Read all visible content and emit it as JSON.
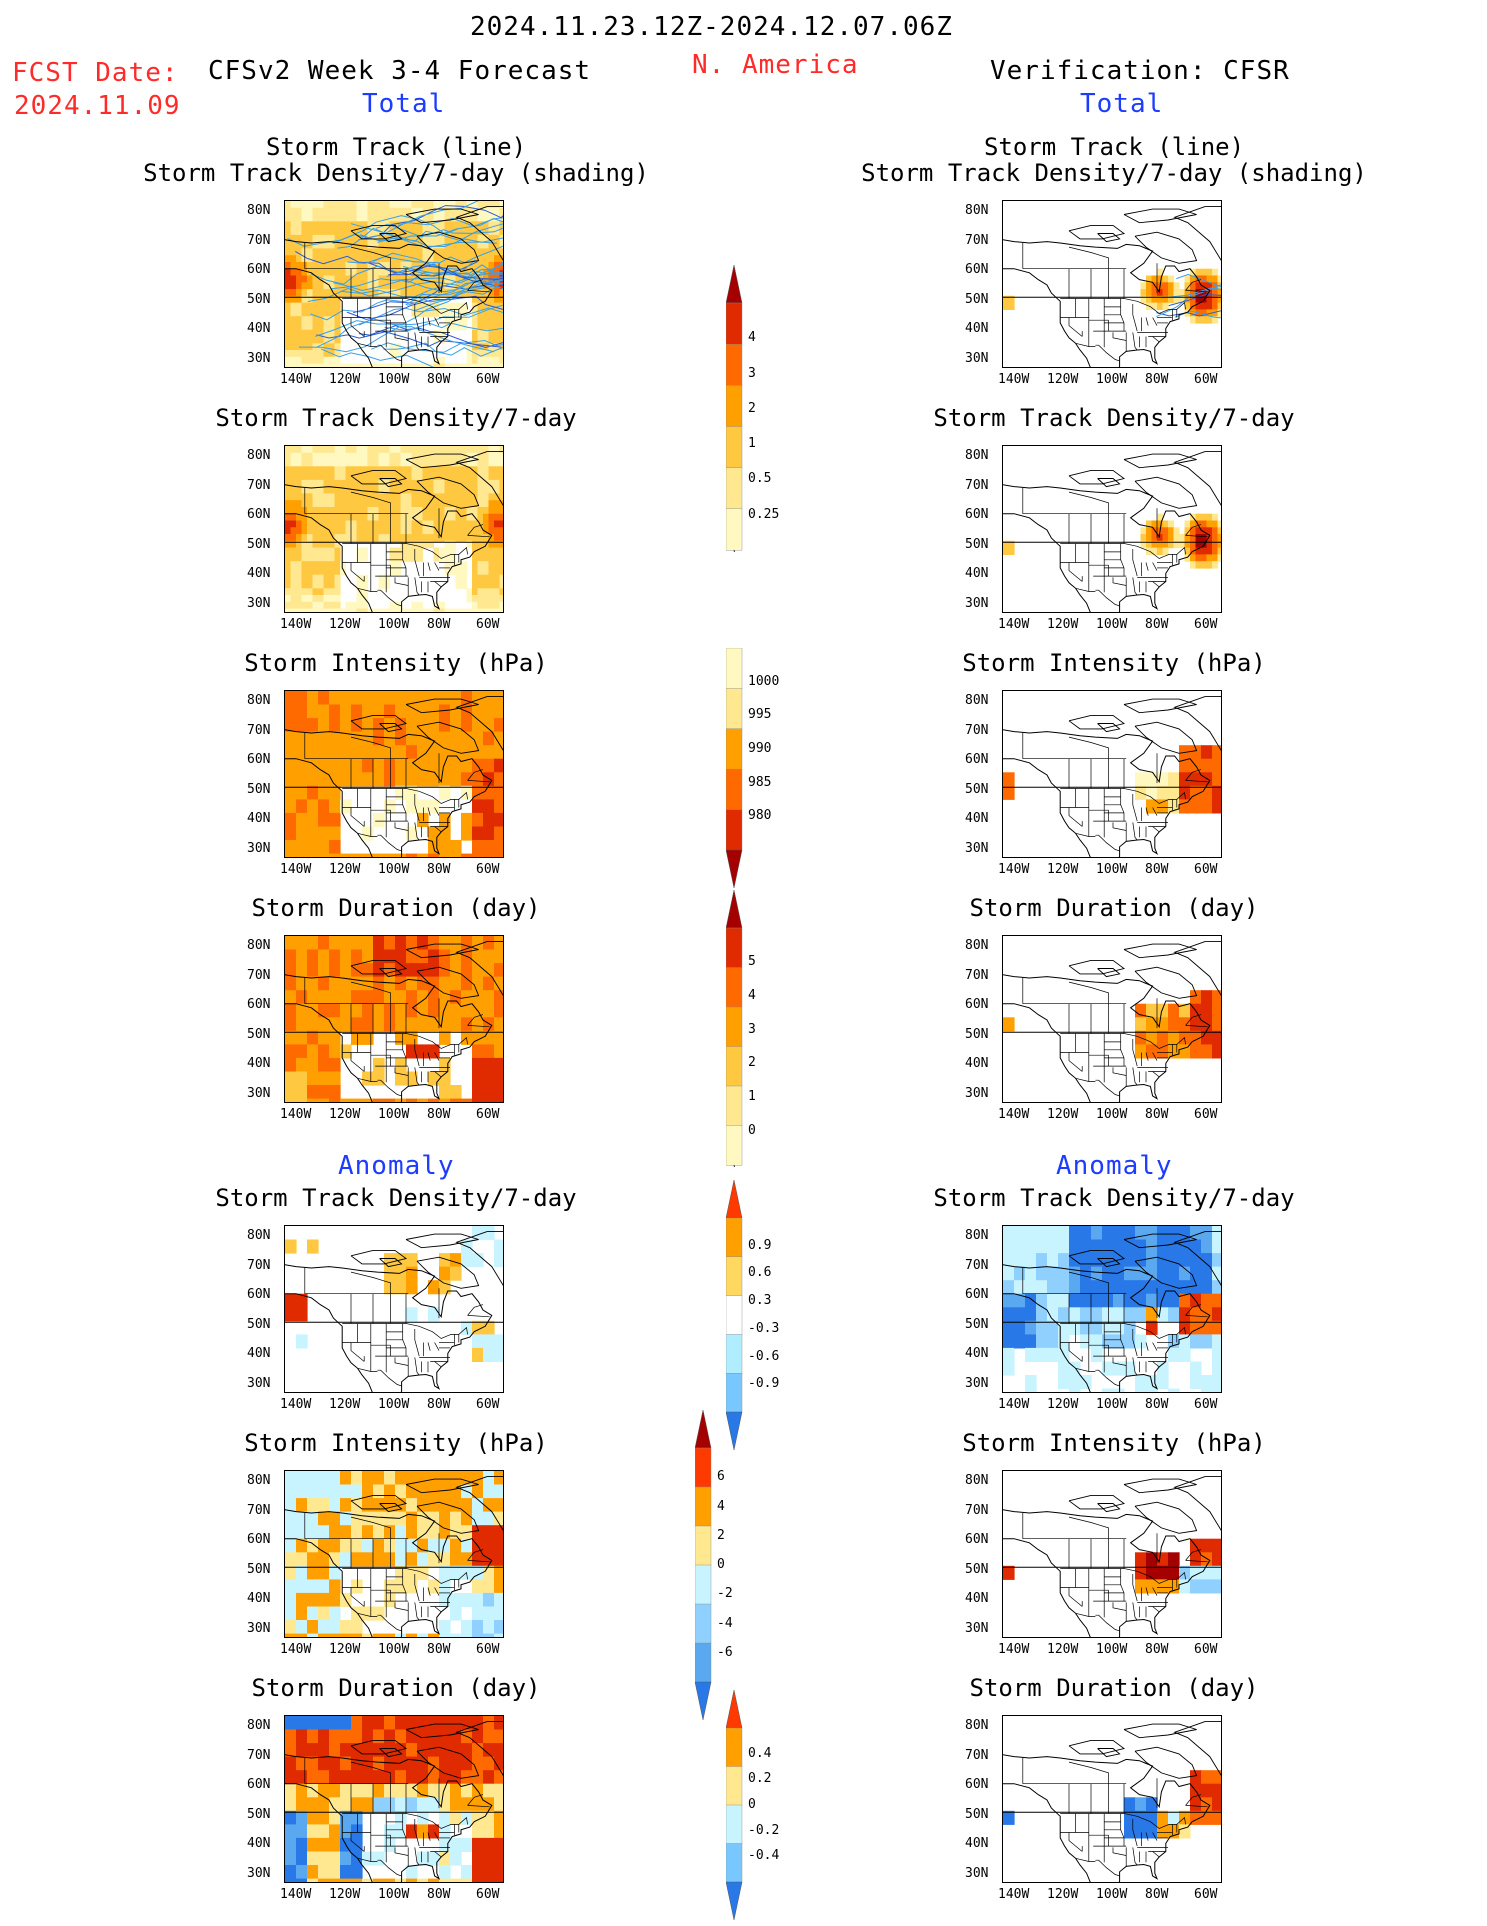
{
  "header": {
    "date_range": "2024.11.23.12Z-2024.12.07.06Z",
    "fcst_label": "FCST Date:",
    "fcst_date": "2024.11.09",
    "left_title": "CFSv2 Week 3-4 Forecast",
    "region": "N. America",
    "right_title": "Verification: CFSR",
    "total_left": "Total",
    "total_right": "Total",
    "anomaly_left": "Anomaly",
    "anomaly_right": "Anomaly"
  },
  "axes": {
    "lat_ticks": [
      "80N",
      "70N",
      "60N",
      "50N",
      "40N",
      "30N"
    ],
    "lon_ticks": [
      "140W",
      "120W",
      "100W",
      "80W",
      "60W"
    ]
  },
  "panels": [
    {
      "id": "f-track",
      "title1": "Storm Track (line)",
      "title2": "Storm Track Density/7-day (shading)",
      "style": "track"
    },
    {
      "id": "v-track",
      "title1": "Storm Track (line)",
      "title2": "Storm Track Density/7-day (shading)",
      "style": "vtrack"
    },
    {
      "id": "f-dens",
      "title1": "Storm Track Density/7-day",
      "style": "dens"
    },
    {
      "id": "v-dens",
      "title1": "Storm Track Density/7-day",
      "style": "vdens"
    },
    {
      "id": "f-int",
      "title1": "Storm Intensity (hPa)",
      "style": "int"
    },
    {
      "id": "v-int",
      "title1": "Storm Intensity (hPa)",
      "style": "vint"
    },
    {
      "id": "f-dur",
      "title1": "Storm Duration (day)",
      "style": "dur"
    },
    {
      "id": "v-dur",
      "title1": "Storm Duration (day)",
      "style": "vdur"
    },
    {
      "id": "f-adens",
      "title1": "Storm Track Density/7-day",
      "style": "adens"
    },
    {
      "id": "v-adens",
      "title1": "Storm Track Density/7-day",
      "style": "vadens"
    },
    {
      "id": "f-aint",
      "title1": "Storm Intensity (hPa)",
      "style": "aint"
    },
    {
      "id": "v-aint",
      "title1": "Storm Intensity (hPa)",
      "style": "vaint"
    },
    {
      "id": "f-adur",
      "title1": "Storm Duration (day)",
      "style": "adur"
    },
    {
      "id": "v-adur",
      "title1": "Storm Duration (day)",
      "style": "vadur"
    }
  ],
  "colorbars": [
    {
      "id": "cb-density",
      "labels": [
        "4",
        "3",
        "2",
        "1",
        "0.5",
        "0.25"
      ],
      "colors": [
        "#a50000",
        "#e02a00",
        "#ff6a00",
        "#ffa000",
        "#ffc840",
        "#ffe890",
        "#fff8c0"
      ],
      "arrow_top": "#a50000"
    },
    {
      "id": "cb-intensity",
      "labels": [
        "1000",
        "995",
        "990",
        "985",
        "980"
      ],
      "colors": [
        "#fff8c0",
        "#ffe890",
        "#ffa000",
        "#ff6a00",
        "#e02a00",
        "#a50000"
      ],
      "arrow_bottom": "#a50000"
    },
    {
      "id": "cb-duration",
      "labels": [
        "5",
        "4",
        "3",
        "2",
        "1",
        "0"
      ],
      "colors": [
        "#a50000",
        "#e02a00",
        "#ff6a00",
        "#ffa000",
        "#ffc840",
        "#ffe890",
        "#fff8c0"
      ],
      "arrow_top": "#a50000"
    },
    {
      "id": "cb-adensity",
      "labels": [
        "0.9",
        "0.6",
        "0.3",
        "-0.3",
        "-0.6",
        "-0.9"
      ],
      "colors": [
        "#ff3a00",
        "#ffa000",
        "#ffd860",
        "#ffffff",
        "#b0eeff",
        "#78c8ff",
        "#2878e8"
      ],
      "arrow_top": "#ff3a00",
      "arrow_bottom": "#2878e8"
    },
    {
      "id": "cb-aintensity",
      "labels": [
        "6",
        "4",
        "2",
        "0",
        "-2",
        "-4",
        "-6"
      ],
      "colors": [
        "#a50000",
        "#ff3a00",
        "#ffa000",
        "#ffe890",
        "#c8f4ff",
        "#90d0ff",
        "#5aa8f0",
        "#2878e8"
      ],
      "arrow_top": "#a50000",
      "arrow_bottom": "#2878e8"
    },
    {
      "id": "cb-aduration",
      "labels": [
        "0.4",
        "0.2",
        "0",
        "-0.2",
        "-0.4"
      ],
      "colors": [
        "#ff3a00",
        "#ffa000",
        "#ffe890",
        "#c8f4ff",
        "#78c8ff",
        "#2878e8"
      ],
      "arrow_top": "#ff3a00",
      "arrow_bottom": "#2878e8"
    }
  ]
}
